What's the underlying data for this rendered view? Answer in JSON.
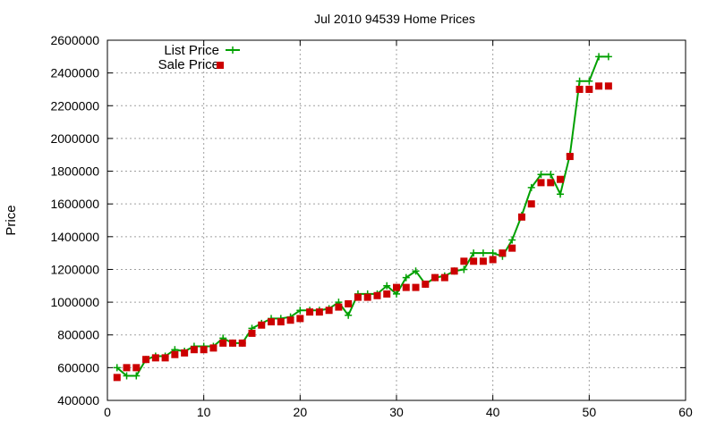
{
  "chart_data": {
    "type": "line",
    "title": "Jul 2010 94539 Home Prices",
    "xlabel": "",
    "ylabel": "Price",
    "xlim": [
      0,
      60
    ],
    "ylim": [
      400000,
      2600000
    ],
    "xticks": [
      0,
      10,
      20,
      30,
      40,
      50,
      60
    ],
    "yticks": [
      400000,
      600000,
      800000,
      1000000,
      1200000,
      1400000,
      1600000,
      1800000,
      2000000,
      2200000,
      2400000,
      2600000
    ],
    "grid": true,
    "legend": "top-left",
    "series": [
      {
        "name": "List Price",
        "style": "line-with-plus",
        "color": "#00a000",
        "points": [
          [
            1,
            600000
          ],
          [
            2,
            550000
          ],
          [
            3,
            550000
          ],
          [
            4,
            650000
          ],
          [
            5,
            670000
          ],
          [
            6,
            670000
          ],
          [
            7,
            710000
          ],
          [
            8,
            700000
          ],
          [
            9,
            730000
          ],
          [
            10,
            730000
          ],
          [
            11,
            730000
          ],
          [
            12,
            780000
          ],
          [
            13,
            750000
          ],
          [
            14,
            750000
          ],
          [
            15,
            840000
          ],
          [
            16,
            870000
          ],
          [
            17,
            900000
          ],
          [
            18,
            900000
          ],
          [
            19,
            910000
          ],
          [
            20,
            950000
          ],
          [
            21,
            950000
          ],
          [
            22,
            950000
          ],
          [
            23,
            960000
          ],
          [
            24,
            1000000
          ],
          [
            25,
            920000
          ],
          [
            26,
            1050000
          ],
          [
            27,
            1050000
          ],
          [
            28,
            1050000
          ],
          [
            29,
            1100000
          ],
          [
            30,
            1050000
          ],
          [
            31,
            1150000
          ],
          [
            32,
            1190000
          ],
          [
            33,
            1110000
          ],
          [
            34,
            1150000
          ],
          [
            35,
            1160000
          ],
          [
            36,
            1190000
          ],
          [
            37,
            1200000
          ],
          [
            38,
            1300000
          ],
          [
            39,
            1300000
          ],
          [
            40,
            1300000
          ],
          [
            41,
            1280000
          ],
          [
            42,
            1380000
          ],
          [
            43,
            1530000
          ],
          [
            44,
            1700000
          ],
          [
            45,
            1780000
          ],
          [
            46,
            1780000
          ],
          [
            47,
            1660000
          ],
          [
            48,
            1900000
          ],
          [
            49,
            2350000
          ],
          [
            50,
            2350000
          ],
          [
            51,
            2500000
          ],
          [
            52,
            2500000
          ]
        ]
      },
      {
        "name": "Sale Price",
        "style": "square-markers",
        "color": "#cc0000",
        "points": [
          [
            1,
            540000
          ],
          [
            2,
            600000
          ],
          [
            3,
            600000
          ],
          [
            4,
            650000
          ],
          [
            5,
            660000
          ],
          [
            6,
            660000
          ],
          [
            7,
            680000
          ],
          [
            8,
            690000
          ],
          [
            9,
            710000
          ],
          [
            10,
            710000
          ],
          [
            11,
            720000
          ],
          [
            12,
            750000
          ],
          [
            13,
            750000
          ],
          [
            14,
            750000
          ],
          [
            15,
            810000
          ],
          [
            16,
            860000
          ],
          [
            17,
            880000
          ],
          [
            18,
            880000
          ],
          [
            19,
            890000
          ],
          [
            20,
            900000
          ],
          [
            21,
            940000
          ],
          [
            22,
            940000
          ],
          [
            23,
            950000
          ],
          [
            24,
            970000
          ],
          [
            25,
            990000
          ],
          [
            26,
            1030000
          ],
          [
            27,
            1030000
          ],
          [
            28,
            1040000
          ],
          [
            29,
            1050000
          ],
          [
            30,
            1090000
          ],
          [
            31,
            1090000
          ],
          [
            32,
            1090000
          ],
          [
            33,
            1110000
          ],
          [
            34,
            1150000
          ],
          [
            35,
            1150000
          ],
          [
            36,
            1190000
          ],
          [
            37,
            1250000
          ],
          [
            38,
            1250000
          ],
          [
            39,
            1250000
          ],
          [
            40,
            1260000
          ],
          [
            41,
            1300000
          ],
          [
            42,
            1330000
          ],
          [
            43,
            1520000
          ],
          [
            44,
            1600000
          ],
          [
            45,
            1730000
          ],
          [
            46,
            1730000
          ],
          [
            47,
            1750000
          ],
          [
            48,
            1890000
          ],
          [
            49,
            2300000
          ],
          [
            50,
            2300000
          ],
          [
            51,
            2320000
          ],
          [
            52,
            2320000
          ]
        ]
      }
    ]
  }
}
